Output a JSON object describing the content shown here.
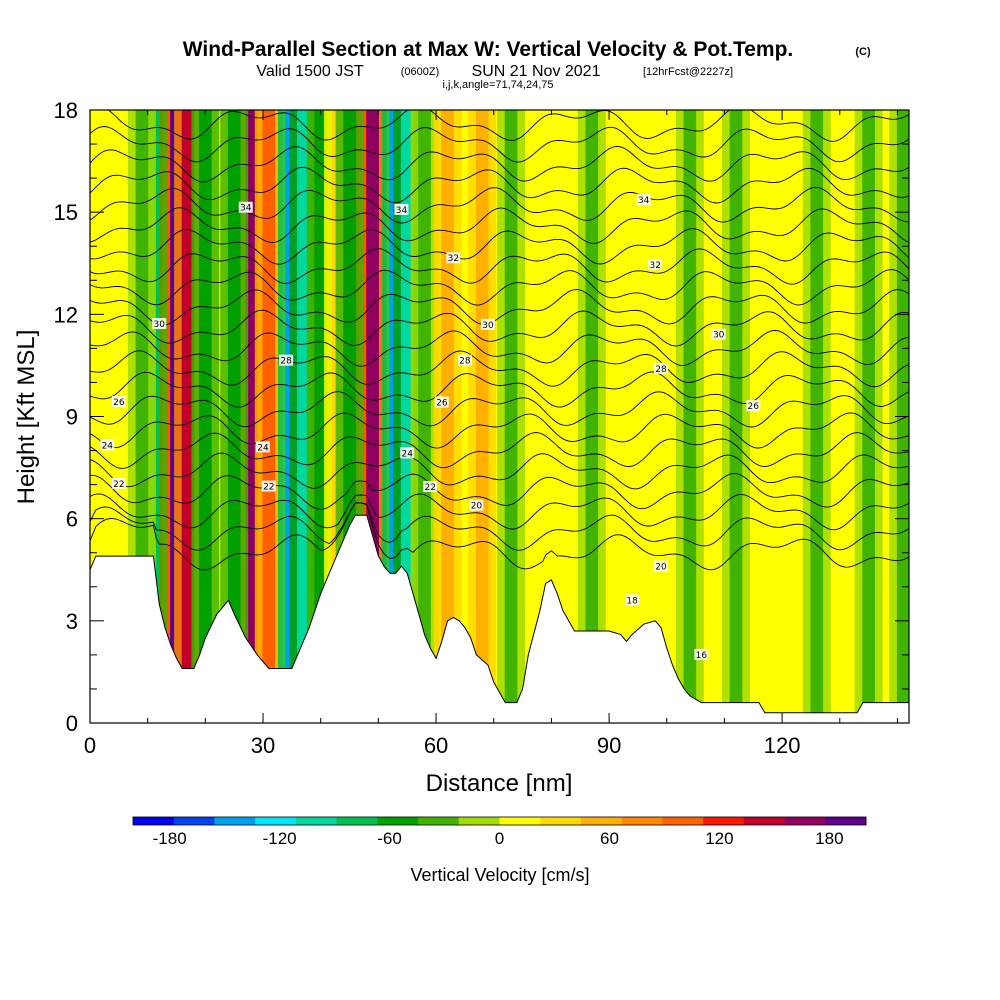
{
  "chart_data": {
    "type": "heatmap",
    "title": "Wind-Parallel Section at Max W: Vertical Velocity & Pot.Temp.",
    "title_mark": "(C)",
    "subtitle_main": "Valid 1500 JST",
    "subtitle_utc": "(0600Z)",
    "subtitle_date": "SUN 21 Nov 2021",
    "subtitle_fcst": "[12hrFcst@2227z]",
    "subtitle_params": "i,j,k,angle=71,74,24,75",
    "xlabel": "Distance [nm]",
    "ylabel": "Height [Kft MSL]",
    "xlim": [
      0,
      142
    ],
    "ylim": [
      0,
      18
    ],
    "x_ticks": [
      "0",
      "30",
      "60",
      "90",
      "120"
    ],
    "y_ticks": [
      "0",
      "3",
      "6",
      "9",
      "12",
      "15",
      "18"
    ],
    "grid": false,
    "colorbar": {
      "label": "Vertical Velocity [cm/s]",
      "ticks": [
        "-180",
        "-120",
        "-60",
        "0",
        "60",
        "120",
        "180"
      ],
      "range": [
        -200,
        200
      ],
      "colors": [
        "#0000ee",
        "#0044ee",
        "#00a0f0",
        "#00e6ff",
        "#00d8a0",
        "#00c050",
        "#00a000",
        "#40b400",
        "#a0dc00",
        "#ffff00",
        "#ffd800",
        "#ffb000",
        "#ff8800",
        "#ff6000",
        "#ff1400",
        "#c00028",
        "#900060",
        "#600090"
      ]
    },
    "w_columns": [
      {
        "x": 13,
        "w": 130
      },
      {
        "x": 15,
        "w": 180
      },
      {
        "x": 17,
        "w": 150
      },
      {
        "x": 11,
        "w": -70
      },
      {
        "x": 20,
        "w": -60
      },
      {
        "x": 9,
        "w": -40
      },
      {
        "x": 28,
        "w": 170
      },
      {
        "x": 31,
        "w": 110
      },
      {
        "x": 25,
        "w": -60
      },
      {
        "x": 35,
        "w": -140
      },
      {
        "x": 37,
        "w": -110
      },
      {
        "x": 40,
        "w": -50
      },
      {
        "x": 43,
        "w": 40
      },
      {
        "x": 47,
        "w": 130
      },
      {
        "x": 49,
        "w": 170
      },
      {
        "x": 45,
        "w": -50
      },
      {
        "x": 53,
        "w": -150
      },
      {
        "x": 55,
        "w": -110
      },
      {
        "x": 58,
        "w": -40
      },
      {
        "x": 62,
        "w": 50
      },
      {
        "x": 68,
        "w": 60
      },
      {
        "x": 73,
        "w": -30
      },
      {
        "x": 80,
        "w": 20
      },
      {
        "x": 87,
        "w": -40
      },
      {
        "x": 94,
        "w": 20
      },
      {
        "x": 104,
        "w": -40
      },
      {
        "x": 112,
        "w": -30
      },
      {
        "x": 126,
        "w": -30
      },
      {
        "x": 135,
        "w": -40
      },
      {
        "x": 141,
        "w": -40
      }
    ],
    "terrain": [
      [
        0,
        4.5
      ],
      [
        1,
        4.9
      ],
      [
        3,
        4.9
      ],
      [
        11,
        4.9
      ],
      [
        12,
        3.5
      ],
      [
        13,
        2.8
      ],
      [
        14,
        2.3
      ],
      [
        15,
        1.9
      ],
      [
        16,
        1.6
      ],
      [
        18,
        1.6
      ],
      [
        19,
        2.0
      ],
      [
        20,
        2.5
      ],
      [
        22,
        3.2
      ],
      [
        24,
        3.6
      ],
      [
        25,
        3.2
      ],
      [
        27,
        2.5
      ],
      [
        29,
        2.0
      ],
      [
        30,
        1.8
      ],
      [
        31,
        1.6
      ],
      [
        35,
        1.6
      ],
      [
        36,
        2.0
      ],
      [
        38,
        2.8
      ],
      [
        40,
        3.8
      ],
      [
        42,
        4.6
      ],
      [
        44,
        5.4
      ],
      [
        45,
        5.8
      ],
      [
        46,
        6.1
      ],
      [
        48,
        6.1
      ],
      [
        49,
        5.5
      ],
      [
        50,
        4.9
      ],
      [
        51,
        4.6
      ],
      [
        52,
        4.4
      ],
      [
        53,
        4.4
      ],
      [
        54,
        4.6
      ],
      [
        55,
        4.4
      ],
      [
        56,
        3.8
      ],
      [
        57,
        3.2
      ],
      [
        58,
        2.6
      ],
      [
        59,
        2.2
      ],
      [
        60,
        1.9
      ],
      [
        61,
        2.4
      ],
      [
        62,
        3.0
      ],
      [
        63,
        3.1
      ],
      [
        64,
        3.0
      ],
      [
        65,
        2.8
      ],
      [
        66,
        2.5
      ],
      [
        67,
        2.0
      ],
      [
        69,
        1.7
      ],
      [
        70,
        1.2
      ],
      [
        71,
        0.9
      ],
      [
        72,
        0.6
      ],
      [
        74,
        0.6
      ],
      [
        75,
        1.0
      ],
      [
        76,
        2.0
      ],
      [
        78,
        3.3
      ],
      [
        79,
        4.1
      ],
      [
        80,
        4.2
      ],
      [
        81,
        3.8
      ],
      [
        82,
        3.3
      ],
      [
        83,
        3.0
      ],
      [
        84,
        2.7
      ],
      [
        90,
        2.7
      ],
      [
        92,
        2.6
      ],
      [
        93,
        2.4
      ],
      [
        94,
        2.6
      ],
      [
        96,
        2.9
      ],
      [
        98,
        3.0
      ],
      [
        99,
        2.8
      ],
      [
        100,
        2.2
      ],
      [
        101,
        1.7
      ],
      [
        102,
        1.3
      ],
      [
        103,
        1.0
      ],
      [
        104,
        0.8
      ],
      [
        106,
        0.6
      ],
      [
        116,
        0.6
      ],
      [
        117,
        0.3
      ],
      [
        119,
        0.3
      ],
      [
        133,
        0.3
      ],
      [
        134,
        0.6
      ],
      [
        138,
        0.6
      ],
      [
        142,
        0.6
      ]
    ],
    "theta_contours": [
      {
        "y": 5.0,
        "label": ""
      },
      {
        "y": 5.6,
        "label": ""
      },
      {
        "y": 6.2,
        "label": "20",
        "label_x": [
          67
        ]
      },
      {
        "y": 6.8,
        "label": "22",
        "label_x": [
          5,
          31,
          59
        ]
      },
      {
        "y": 7.4,
        "label": "",
        "label_x": []
      },
      {
        "y": 8.0,
        "label": "24",
        "label_x": [
          3,
          30,
          55
        ]
      },
      {
        "y": 8.6,
        "label": "",
        "label_x": []
      },
      {
        "y": 9.2,
        "label": "26",
        "label_x": [
          5,
          61,
          115
        ]
      },
      {
        "y": 9.8,
        "label": "",
        "label_x": []
      },
      {
        "y": 10.4,
        "label": "28",
        "label_x": [
          34,
          65,
          99
        ]
      },
      {
        "y": 11.0,
        "label": "",
        "label_x": []
      },
      {
        "y": 11.6,
        "label": "30",
        "label_x": [
          12,
          69,
          109
        ]
      },
      {
        "y": 12.2,
        "label": "",
        "label_x": []
      },
      {
        "y": 12.8,
        "label": "",
        "label_x": []
      },
      {
        "y": 13.4,
        "label": "32",
        "label_x": [
          63,
          98
        ]
      },
      {
        "y": 14.0,
        "label": "",
        "label_x": []
      },
      {
        "y": 14.6,
        "label": "",
        "label_x": []
      },
      {
        "y": 15.2,
        "label": "34",
        "label_x": [
          27,
          54,
          96
        ]
      },
      {
        "y": 15.8,
        "label": "",
        "label_x": []
      },
      {
        "y": 16.4,
        "label": "",
        "label_x": []
      },
      {
        "y": 17.0,
        "label": "",
        "label_x": []
      },
      {
        "y": 17.6,
        "label": "",
        "label_x": []
      }
    ],
    "low_labels": [
      {
        "text": "18",
        "x": 94
      },
      {
        "text": "16",
        "x": 106
      },
      {
        "text": "20",
        "x": 99
      }
    ]
  }
}
